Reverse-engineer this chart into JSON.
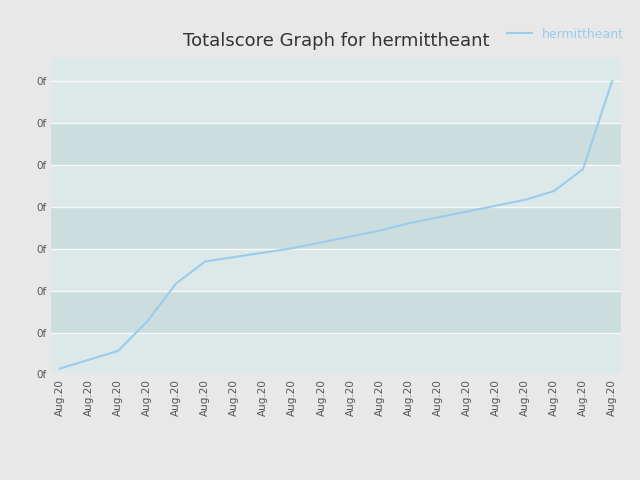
{
  "title": "Totalscore Graph for hermittheant",
  "legend_label": "hermittheant",
  "line_color": "#99ccee",
  "background_color": "#e8e8e8",
  "plot_bg_color": "#dde8e8",
  "band_color_1": "#dde8e8",
  "band_color_2": "#ccdddd",
  "title_fontsize": 13,
  "tick_fontsize": 7.5,
  "legend_fontsize": 9,
  "y_tick_labels": [
    "0f",
    "0f",
    "0f",
    "0f",
    "0f",
    "0f",
    "0f",
    "0f"
  ],
  "x_tick_labels": [
    "Aug.20",
    "Aug.20",
    "Aug.20",
    "Aug.20",
    "Aug.20",
    "Aug.20",
    "Aug.20",
    "Aug.20",
    "Aug.20",
    "Aug.20",
    "Aug.20",
    "Aug.20",
    "Aug.20",
    "Aug.20",
    "Aug.20",
    "Aug.20",
    "Aug.20",
    "Aug.20",
    "Aug.20",
    "Aug.20"
  ],
  "x_values": [
    0,
    1,
    2,
    3,
    4,
    5,
    6,
    7,
    8,
    9,
    10,
    11,
    12,
    13,
    14,
    15,
    16,
    17,
    18,
    19
  ],
  "y_values": [
    0.02,
    0.05,
    0.08,
    0.18,
    0.31,
    0.385,
    0.4,
    0.415,
    0.43,
    0.45,
    0.47,
    0.49,
    0.515,
    0.535,
    0.555,
    0.575,
    0.595,
    0.625,
    0.7,
    1.0
  ],
  "ylim": [
    0,
    1.08
  ],
  "xlim": [
    -0.3,
    19.3
  ],
  "y_ticks_norm": [
    0.0,
    0.1428,
    0.2857,
    0.4286,
    0.5714,
    0.7143,
    0.8571,
    1.0
  ]
}
